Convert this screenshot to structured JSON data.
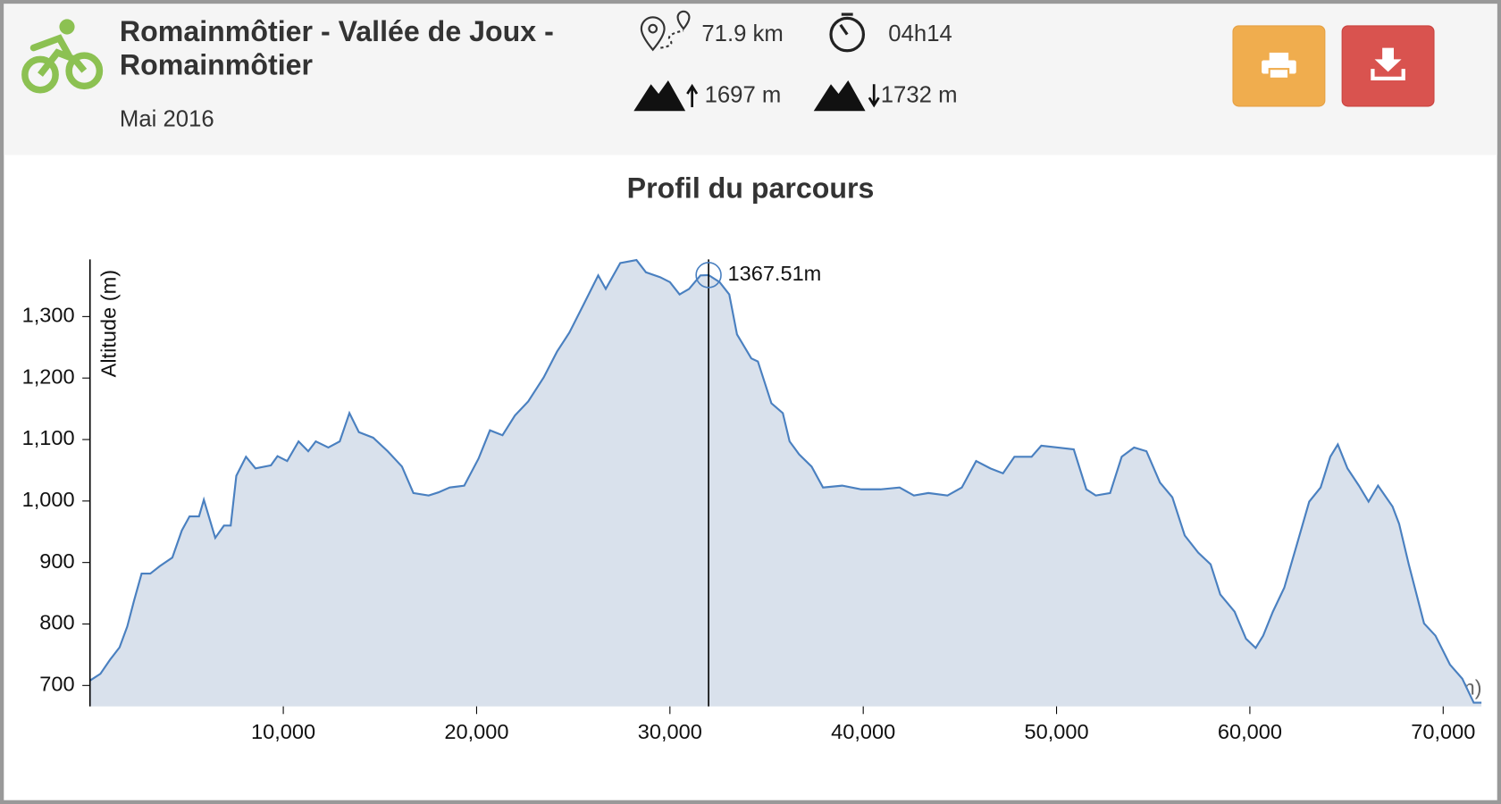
{
  "header": {
    "title": "Romainmôtier - Vallée de Joux - Romainmôtier",
    "date": "Mai 2016",
    "stats": {
      "distance": "71.9 km",
      "duration": "04h14",
      "ascent": "1697 m",
      "descent": "1732 m"
    }
  },
  "chart_data": {
    "type": "area",
    "title": "Profil du parcours",
    "x_label": "Distance (m)",
    "y_label": "Altitude (m)",
    "color": "#4a80c0",
    "fill": "#d9e1ec",
    "x": [
      0,
      540,
      1040,
      1530,
      1930,
      2280,
      2670,
      3120,
      3610,
      4260,
      4750,
      5150,
      5640,
      5890,
      6480,
      6930,
      7280,
      7570,
      8070,
      8560,
      9360,
      9700,
      10200,
      10790,
      11290,
      11680,
      12330,
      12920,
      13420,
      13910,
      14650,
      15400,
      16140,
      16730,
      17520,
      18020,
      18610,
      19360,
      20100,
      20690,
      21340,
      21980,
      22670,
      23470,
      24160,
      24800,
      25540,
      26290,
      26680,
      27430,
      28270,
      28760,
      29500,
      30000,
      30500,
      30990,
      31580,
      32000,
      32570,
      33070,
      33470,
      34210,
      34550,
      35250,
      35840,
      36190,
      36680,
      37330,
      37920,
      38910,
      39900,
      40890,
      41880,
      42620,
      43370,
      44360,
      45100,
      45840,
      46580,
      47230,
      47820,
      48710,
      49210,
      50050,
      50890,
      51540,
      52030,
      52770,
      53370,
      54010,
      54650,
      55350,
      55990,
      56630,
      57330,
      57970,
      58470,
      59210,
      59800,
      60300,
      60690,
      61190,
      61780,
      62430,
      63070,
      63660,
      64160,
      64550,
      65050,
      65640,
      66140,
      66630,
      67380,
      67720,
      68220,
      69010,
      69600,
      70350,
      70990,
      71580,
      71980
    ],
    "values": [
      708,
      719,
      742,
      762,
      796,
      838,
      882,
      882,
      894,
      908,
      952,
      975,
      975,
      1002,
      940,
      960,
      960,
      1041,
      1072,
      1053,
      1058,
      1073,
      1065,
      1097,
      1081,
      1097,
      1087,
      1097,
      1143,
      1112,
      1103,
      1081,
      1056,
      1013,
      1009,
      1014,
      1022,
      1025,
      1069,
      1115,
      1107,
      1139,
      1162,
      1201,
      1243,
      1274,
      1320,
      1367,
      1345,
      1387,
      1392,
      1372,
      1364,
      1356,
      1336,
      1345,
      1367,
      1367.51,
      1356,
      1336,
      1271,
      1232,
      1227,
      1159,
      1143,
      1097,
      1076,
      1056,
      1022,
      1025,
      1019,
      1019,
      1022,
      1009,
      1013,
      1009,
      1022,
      1065,
      1053,
      1045,
      1072,
      1072,
      1090,
      1087,
      1084,
      1019,
      1009,
      1013,
      1072,
      1087,
      1081,
      1030,
      1006,
      944,
      916,
      897,
      848,
      820,
      776,
      761,
      781,
      820,
      859,
      929,
      999,
      1022,
      1072,
      1092,
      1053,
      1025,
      999,
      1025,
      991,
      963,
      897,
      801,
      781,
      734,
      711,
      672,
      672
    ],
    "xlim": [
      0,
      72100
    ],
    "ylim": [
      666,
      1393
    ],
    "xticks": [
      {
        "value": 10000,
        "label": "10,000"
      },
      {
        "value": 20000,
        "label": "20,000"
      },
      {
        "value": 30000,
        "label": "30,000"
      },
      {
        "value": 40000,
        "label": "40,000"
      },
      {
        "value": 50000,
        "label": "50,000"
      },
      {
        "value": 60000,
        "label": "60,000"
      },
      {
        "value": 70000,
        "label": "70,000"
      }
    ],
    "yticks": [
      700,
      800,
      900,
      {
        "value": 1000,
        "label": "1,000"
      },
      {
        "value": 1100,
        "label": "1,100"
      },
      {
        "value": 1200,
        "label": "1,200"
      },
      {
        "value": 1300,
        "label": "1,300"
      }
    ],
    "hover": {
      "x": 32000,
      "value": 1367.51,
      "label": "1367.51m"
    }
  }
}
